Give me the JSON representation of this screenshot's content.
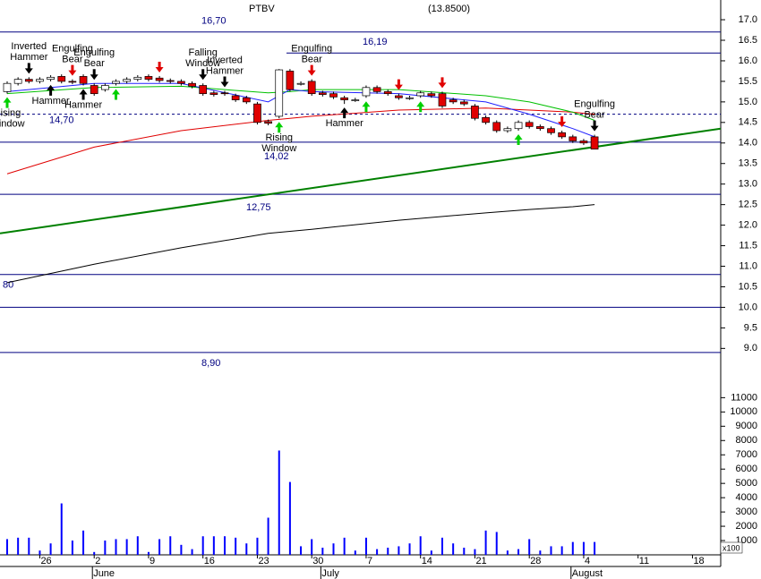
{
  "chart_data": {
    "type": "candlestick",
    "title": "PTBV",
    "last_price": "(13.8500)",
    "categories": [
      "05-21",
      "05-22",
      "05-23",
      "05-26",
      "05-27",
      "05-28",
      "05-29",
      "05-30",
      "06-02",
      "06-03",
      "06-04",
      "06-05",
      "06-06",
      "06-09",
      "06-10",
      "06-11",
      "06-12",
      "06-13",
      "06-16",
      "06-17",
      "06-18",
      "06-19",
      "06-20",
      "06-23",
      "06-24",
      "06-25",
      "06-26",
      "06-27",
      "06-30",
      "07-01",
      "07-02",
      "07-03",
      "07-04",
      "07-07",
      "07-08",
      "07-09",
      "07-10",
      "07-11",
      "07-14",
      "07-15",
      "07-16",
      "07-17",
      "07-18",
      "07-21",
      "07-22",
      "07-23",
      "07-24",
      "07-25",
      "07-28",
      "07-29",
      "07-30",
      "07-31",
      "08-01",
      "08-04",
      "08-05",
      "08-06",
      "08-07",
      "08-08",
      "08-11",
      "08-12",
      "08-13",
      "08-14",
      "08-15",
      "08-18",
      "08-19",
      "08-20",
      "08-21",
      "08-22"
    ],
    "open": [
      15.25,
      15.45,
      15.55,
      15.5,
      15.55,
      15.62,
      15.5,
      15.62,
      15.4,
      15.3,
      15.45,
      15.5,
      15.55,
      15.62,
      15.58,
      15.52,
      15.5,
      15.45,
      15.4,
      15.22,
      15.22,
      15.15,
      15.1,
      14.95,
      14.52,
      14.65,
      15.75,
      15.45,
      15.5,
      15.22,
      15.2,
      15.1,
      15.05,
      15.15,
      15.35,
      15.25,
      15.15,
      15.1,
      15.15,
      15.2,
      15.2,
      15.05,
      15.0,
      14.9,
      14.62,
      14.5,
      14.3,
      14.35,
      14.5,
      14.4,
      14.35,
      14.25,
      14.15,
      14.05,
      14.15,
      null,
      null,
      null,
      null,
      null,
      null,
      null,
      null,
      null,
      null,
      null,
      null,
      null
    ],
    "high": [
      15.5,
      15.6,
      15.6,
      15.6,
      15.65,
      15.67,
      15.55,
      15.67,
      15.45,
      15.45,
      15.55,
      15.6,
      15.65,
      15.67,
      15.63,
      15.57,
      15.55,
      15.5,
      15.45,
      15.27,
      15.27,
      15.2,
      15.15,
      15.0,
      14.57,
      15.8,
      15.8,
      15.5,
      15.55,
      15.27,
      15.25,
      15.15,
      15.1,
      15.4,
      15.4,
      15.3,
      15.2,
      15.15,
      15.27,
      15.25,
      15.25,
      15.1,
      15.05,
      14.95,
      14.67,
      14.55,
      14.4,
      14.55,
      14.55,
      14.45,
      14.4,
      14.3,
      14.2,
      14.1,
      14.2,
      null,
      null,
      null,
      null,
      null,
      null,
      null,
      null,
      null,
      null,
      null,
      null,
      null
    ],
    "low": [
      15.2,
      15.4,
      15.45,
      15.45,
      15.5,
      15.45,
      15.43,
      15.4,
      15.15,
      15.25,
      15.4,
      15.45,
      15.5,
      15.5,
      15.47,
      15.45,
      15.4,
      15.33,
      15.15,
      15.13,
      15.15,
      15.0,
      14.95,
      14.45,
      14.43,
      14.6,
      15.25,
      15.4,
      15.15,
      15.13,
      15.07,
      14.95,
      15.0,
      15.1,
      15.2,
      15.15,
      15.05,
      15.05,
      15.1,
      15.1,
      14.85,
      14.95,
      14.9,
      14.55,
      14.45,
      14.25,
      14.25,
      14.3,
      14.35,
      14.3,
      14.2,
      14.1,
      14.0,
      13.95,
      13.85,
      null,
      null,
      null,
      null,
      null,
      null,
      null,
      null,
      null,
      null,
      null,
      null,
      null
    ],
    "close": [
      15.45,
      15.55,
      15.5,
      15.55,
      15.6,
      15.5,
      15.48,
      15.45,
      15.2,
      15.4,
      15.5,
      15.55,
      15.6,
      15.55,
      15.52,
      15.5,
      15.45,
      15.38,
      15.2,
      15.18,
      15.2,
      15.05,
      15.0,
      14.5,
      14.48,
      15.78,
      15.3,
      15.45,
      15.2,
      15.18,
      15.12,
      15.05,
      15.05,
      15.35,
      15.25,
      15.2,
      15.1,
      15.1,
      15.22,
      15.15,
      14.9,
      15.0,
      14.95,
      14.6,
      14.5,
      14.3,
      14.35,
      14.5,
      14.4,
      14.35,
      14.25,
      14.15,
      14.05,
      14.0,
      13.85,
      null,
      null,
      null,
      null,
      null,
      null,
      null,
      null,
      null,
      null,
      null,
      null,
      null
    ],
    "volume": [
      1100,
      1200,
      1200,
      300,
      800,
      3600,
      1000,
      1700,
      200,
      1000,
      1100,
      1100,
      1300,
      200,
      1100,
      1300,
      700,
      400,
      1300,
      1300,
      1300,
      1200,
      800,
      1200,
      2600,
      7300,
      5100,
      600,
      1100,
      500,
      800,
      1200,
      300,
      1200,
      400,
      500,
      600,
      800,
      1300,
      300,
      1200,
      800,
      500,
      400,
      1700,
      1600,
      300,
      400,
      1100,
      300,
      600,
      600,
      900,
      900,
      900,
      null,
      null,
      null,
      null,
      null,
      null,
      null,
      null,
      null,
      null,
      null,
      null,
      null
    ],
    "up_color": "#ffffff",
    "down_color": "#e00000",
    "volume_color": "#0000ff",
    "series": [
      {
        "color": "#e00000",
        "x": [
          "05-21",
          "06-02",
          "06-12",
          "06-24",
          "06-26",
          "06-30",
          "07-10",
          "07-22",
          "07-28",
          "08-01",
          "08-05"
        ],
        "values": [
          13.25,
          13.9,
          14.3,
          14.55,
          14.6,
          14.65,
          14.8,
          14.85,
          14.8,
          14.75,
          14.7
        ]
      },
      {
        "color": "#000000",
        "x": [
          "05-21",
          "06-02",
          "06-12",
          "06-24",
          "06-26",
          "06-30",
          "07-10",
          "07-22",
          "07-28",
          "08-01",
          "08-05"
        ],
        "values": [
          10.6,
          11.05,
          11.45,
          11.8,
          11.85,
          11.9,
          12.12,
          12.3,
          12.38,
          12.45,
          12.5
        ]
      },
      {
        "color": "#00c000",
        "x": [
          "05-21",
          "06-02",
          "06-12",
          "06-24",
          "06-26",
          "06-30",
          "07-10",
          "07-22",
          "07-28",
          "08-01",
          "08-05"
        ],
        "values": [
          15.2,
          15.35,
          15.38,
          15.22,
          15.25,
          15.3,
          15.3,
          15.15,
          15.0,
          14.75,
          14.55
        ]
      },
      {
        "color": "#2020ff",
        "x": [
          "05-21",
          "06-02",
          "06-12",
          "06-24",
          "06-26",
          "06-30",
          "07-10",
          "07-22",
          "07-28",
          "08-01",
          "08-05"
        ],
        "values": [
          15.25,
          15.45,
          15.45,
          15.0,
          15.3,
          15.25,
          15.2,
          15.0,
          14.7,
          14.35,
          14.15
        ]
      }
    ],
    "trendline": {
      "color": "#008000",
      "values": [
        11.8,
        14.35
      ]
    },
    "level_color": "#000080",
    "levels": [
      {
        "value": 16.7,
        "label": "16,70"
      },
      {
        "value": 16.19,
        "label": "16,19"
      },
      {
        "value": 14.7,
        "label": "14,70"
      },
      {
        "value": 14.02,
        "label": "14,02"
      },
      {
        "value": 12.75,
        "label": "12,75"
      },
      {
        "value": 10.8,
        "label": "80"
      },
      10,
      {
        "value": 8.9,
        "label": "8,90"
      }
    ],
    "annotations": [
      {
        "date": "05-21",
        "dir": "up",
        "color": "#00d000",
        "text": [
          "Rising",
          "Window"
        ]
      },
      {
        "date": "05-23",
        "dir": "down",
        "color": "#000000",
        "text": [
          "Inverted",
          "Hammer"
        ]
      },
      {
        "date": "05-27",
        "dir": "up",
        "color": "#000000",
        "text": [
          "Hammer"
        ]
      },
      {
        "date": "05-29",
        "dir": "down",
        "color": "#e00000",
        "text": [
          "Engulfing",
          "Bear"
        ]
      },
      {
        "date": "05-30",
        "dir": "up",
        "color": "#000000",
        "text": [
          "Hammer"
        ]
      },
      {
        "date": "06-02",
        "dir": "down",
        "color": "#000000",
        "text": [
          "Engulfing",
          "Bear"
        ]
      },
      {
        "date": "06-04",
        "dir": "up",
        "color": "#00d000"
      },
      {
        "date": "06-10",
        "dir": "down",
        "color": "#e00000"
      },
      {
        "date": "06-16",
        "dir": "down",
        "color": "#000000",
        "text": [
          "Falling",
          "Window"
        ]
      },
      {
        "date": "06-18",
        "dir": "down",
        "color": "#000000",
        "text": [
          "Inverted",
          "Hammer"
        ]
      },
      {
        "date": "06-25",
        "dir": "up",
        "color": "#00d000",
        "text": [
          "Rising",
          "Window"
        ]
      },
      {
        "date": "06-30",
        "dir": "down",
        "color": "#e00000",
        "text": [
          "Engulfing",
          "Bear"
        ]
      },
      {
        "date": "07-03",
        "dir": "up",
        "color": "#000000",
        "text": [
          "Hammer"
        ]
      },
      {
        "date": "07-07",
        "dir": "up",
        "color": "#00d000"
      },
      {
        "date": "07-10",
        "dir": "down",
        "color": "#e00000"
      },
      {
        "date": "07-14",
        "dir": "up",
        "color": "#00d000"
      },
      {
        "date": "07-16",
        "dir": "down",
        "color": "#e00000"
      },
      {
        "date": "07-25",
        "dir": "up",
        "color": "#00d000"
      },
      {
        "date": "07-31",
        "dir": "down",
        "color": "#e00000"
      },
      {
        "date": "08-05",
        "dir": "down",
        "color": "#000000",
        "text": [
          "Engulfing",
          "Bear"
        ]
      }
    ],
    "ylim": [
      8.55,
      17.48
    ],
    "yticks": [
      {
        "value": 17,
        "label": "17.0"
      },
      {
        "value": 16.5,
        "label": "16.5"
      },
      {
        "value": 16,
        "label": "16.0"
      },
      {
        "value": 15.5,
        "label": "15.5"
      },
      {
        "value": 15,
        "label": "15.0"
      },
      {
        "value": 14.5,
        "label": "14.5"
      },
      {
        "value": 14,
        "label": "14.0"
      },
      {
        "value": 13.5,
        "label": "13.5"
      },
      {
        "value": 13,
        "label": "13.0"
      },
      {
        "value": 12.5,
        "label": "12.5"
      },
      {
        "value": 12,
        "label": "12.0"
      },
      {
        "value": 11.5,
        "label": "11.5"
      },
      {
        "value": 11,
        "label": "11.0"
      },
      {
        "value": 10.5,
        "label": "10.5"
      },
      {
        "value": 10,
        "label": "10.0"
      },
      {
        "value": 9.5,
        "label": "9.5"
      },
      {
        "value": 9,
        "label": "9.0"
      }
    ],
    "y2lim": [
      0,
      11900
    ],
    "y2ticks": [
      1000,
      2000,
      3000,
      4000,
      5000,
      6000,
      7000,
      8000,
      9000,
      10000,
      11000
    ],
    "volume_unit": "x100",
    "xticks": [
      {
        "value": "05-26",
        "label": "26"
      },
      {
        "value": "06-02",
        "label": "2"
      },
      {
        "value": "06-09",
        "label": "9"
      },
      {
        "value": "06-16",
        "label": "16"
      },
      {
        "value": "06-23",
        "label": "23"
      },
      {
        "value": "06-30",
        "label": "30"
      },
      {
        "value": "07-07",
        "label": "7"
      },
      {
        "value": "07-14",
        "label": "14"
      },
      {
        "value": "07-21",
        "label": "21"
      },
      {
        "value": "07-28",
        "label": "28"
      },
      {
        "value": "08-04",
        "label": "4"
      },
      {
        "value": "08-11",
        "label": "11"
      },
      {
        "value": "08-18",
        "label": "18"
      }
    ],
    "months": [
      {
        "value": "06-02",
        "label": "June"
      },
      {
        "value": "07-01",
        "label": "July"
      },
      {
        "value": "08-01",
        "label": "August"
      }
    ]
  }
}
